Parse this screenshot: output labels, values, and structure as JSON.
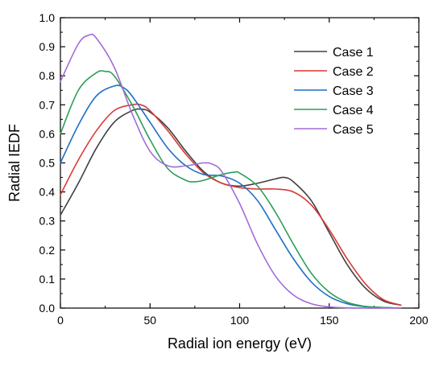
{
  "chart_data": {
    "type": "line",
    "title": "",
    "xlabel": "Radial ion energy (eV)",
    "ylabel": "Radial IEDF",
    "xlim": [
      0,
      200
    ],
    "ylim": [
      0.0,
      1.0
    ],
    "x_ticks": [
      "0",
      "50",
      "100",
      "150",
      "200"
    ],
    "y_ticks": [
      "0.0",
      "0.1",
      "0.2",
      "0.3",
      "0.4",
      "0.5",
      "0.6",
      "0.7",
      "0.8",
      "0.9",
      "1.0"
    ],
    "grid": false,
    "legend_position": "top-right",
    "series": [
      {
        "name": "Case 1",
        "color": "#404040",
        "x": [
          0,
          10,
          20,
          30,
          40,
          45,
          50,
          60,
          70,
          80,
          90,
          100,
          110,
          120,
          125,
          130,
          140,
          150,
          160,
          170,
          180,
          190
        ],
        "y": [
          0.32,
          0.43,
          0.55,
          0.64,
          0.68,
          0.685,
          0.675,
          0.62,
          0.54,
          0.47,
          0.43,
          0.42,
          0.43,
          0.445,
          0.45,
          0.435,
          0.37,
          0.26,
          0.15,
          0.07,
          0.025,
          0.01
        ]
      },
      {
        "name": "Case 2",
        "color": "#d93a35",
        "x": [
          0,
          10,
          20,
          30,
          40,
          45,
          50,
          60,
          70,
          80,
          90,
          100,
          110,
          120,
          130,
          140,
          150,
          160,
          170,
          180,
          190
        ],
        "y": [
          0.39,
          0.51,
          0.61,
          0.68,
          0.7,
          0.7,
          0.68,
          0.61,
          0.53,
          0.465,
          0.43,
          0.415,
          0.41,
          0.41,
          0.4,
          0.355,
          0.27,
          0.17,
          0.085,
          0.03,
          0.01
        ]
      },
      {
        "name": "Case 3",
        "color": "#1e6fc4",
        "x": [
          0,
          10,
          20,
          30,
          35,
          40,
          50,
          60,
          70,
          80,
          90,
          100,
          110,
          120,
          130,
          140,
          150,
          160,
          170,
          180,
          190
        ],
        "y": [
          0.5,
          0.63,
          0.73,
          0.765,
          0.76,
          0.73,
          0.64,
          0.55,
          0.49,
          0.46,
          0.455,
          0.43,
          0.37,
          0.27,
          0.17,
          0.09,
          0.04,
          0.015,
          0.005,
          0.002,
          0.0
        ]
      },
      {
        "name": "Case 4",
        "color": "#2c9e57",
        "x": [
          0,
          10,
          20,
          25,
          30,
          40,
          50,
          60,
          70,
          75,
          80,
          90,
          97,
          100,
          110,
          120,
          130,
          140,
          150,
          160,
          170,
          180,
          190
        ],
        "y": [
          0.6,
          0.75,
          0.81,
          0.815,
          0.8,
          0.7,
          0.58,
          0.48,
          0.44,
          0.435,
          0.44,
          0.46,
          0.468,
          0.465,
          0.42,
          0.33,
          0.22,
          0.12,
          0.055,
          0.02,
          0.006,
          0.002,
          0.0
        ]
      },
      {
        "name": "Case 5",
        "color": "#a36bd6",
        "x": [
          0,
          10,
          16,
          20,
          30,
          40,
          50,
          60,
          70,
          80,
          85,
          90,
          100,
          110,
          120,
          130,
          140,
          150,
          160,
          170,
          180,
          190
        ],
        "y": [
          0.78,
          0.91,
          0.94,
          0.93,
          0.83,
          0.67,
          0.54,
          0.49,
          0.49,
          0.5,
          0.495,
          0.47,
          0.36,
          0.22,
          0.11,
          0.045,
          0.015,
          0.004,
          0.001,
          0.0,
          0.0,
          0.0
        ]
      }
    ]
  }
}
